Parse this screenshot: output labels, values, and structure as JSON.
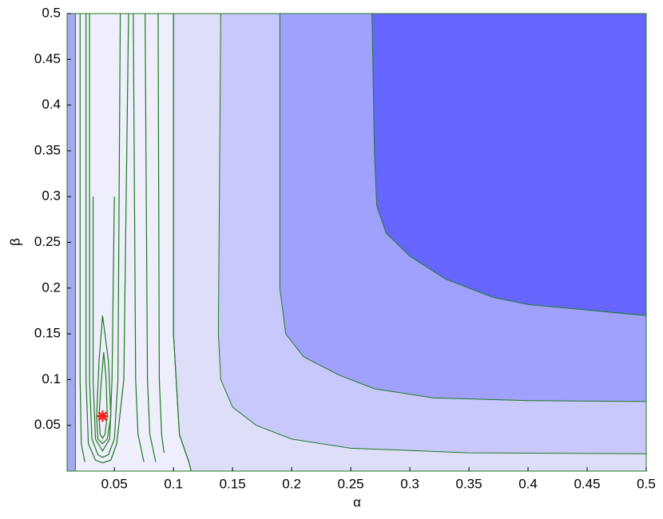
{
  "chart_data": {
    "type": "contour",
    "xlabel": "α",
    "ylabel": "β",
    "xlim": [
      0.01,
      0.5
    ],
    "ylim": [
      0,
      0.5
    ],
    "xticks": [
      0.05,
      0.1,
      0.15,
      0.2,
      0.25,
      0.3,
      0.35,
      0.4,
      0.45,
      0.5
    ],
    "yticks": [
      0.05,
      0.1,
      0.15,
      0.2,
      0.25,
      0.3,
      0.35,
      0.4,
      0.45,
      0.5
    ],
    "background": "#eeeefc",
    "line_color": "#1f7a1f",
    "regions": [
      {
        "color": "#a4aaf0",
        "x": [
          0.01,
          0.017,
          0.017,
          0.01
        ],
        "y": [
          0,
          0,
          0.5,
          0.5
        ]
      },
      {
        "color": "#dedef9",
        "x": [
          0.1,
          0.1,
          0.1,
          0.105,
          0.113,
          0.115,
          0.5,
          0.5
        ],
        "y": [
          0.5,
          0.3,
          0.15,
          0.04,
          0.01,
          0,
          0,
          0.5
        ]
      },
      {
        "color": "#c8c8fd",
        "x": [
          0.14,
          0.138,
          0.14,
          0.15,
          0.17,
          0.2,
          0.25,
          0.35,
          0.5,
          0.5
        ],
        "y": [
          0.5,
          0.15,
          0.1,
          0.07,
          0.05,
          0.035,
          0.025,
          0.02,
          0.019,
          0.5
        ]
      },
      {
        "color": "#a0a0fd",
        "x": [
          0.19,
          0.19,
          0.195,
          0.21,
          0.24,
          0.27,
          0.32,
          0.4,
          0.5,
          0.5
        ],
        "y": [
          0.5,
          0.2,
          0.15,
          0.125,
          0.105,
          0.09,
          0.08,
          0.077,
          0.076,
          0.5
        ]
      },
      {
        "color": "#6666fe",
        "x": [
          0.268,
          0.27,
          0.272,
          0.28,
          0.3,
          0.33,
          0.37,
          0.4,
          0.45,
          0.5,
          0.5
        ],
        "y": [
          0.5,
          0.35,
          0.29,
          0.26,
          0.235,
          0.21,
          0.19,
          0.182,
          0.176,
          0.17,
          0.5
        ]
      }
    ],
    "lines": [
      {
        "x": [
          0.021,
          0.021,
          0.022,
          0.025
        ],
        "y": [
          0.5,
          0.1,
          0.03,
          0.01
        ]
      },
      {
        "x": [
          0.026,
          0.026,
          0.028,
          0.034,
          0.04,
          0.047,
          0.052,
          0.058,
          0.06,
          0.062
        ],
        "y": [
          0.5,
          0.1,
          0.03,
          0.012,
          0.009,
          0.012,
          0.03,
          0.1,
          0.3,
          0.5
        ]
      },
      {
        "x": [
          0.029,
          0.029,
          0.031,
          0.036,
          0.04,
          0.045,
          0.05,
          0.053,
          0.054,
          0.055
        ],
        "y": [
          0.5,
          0.1,
          0.035,
          0.018,
          0.015,
          0.018,
          0.035,
          0.1,
          0.3,
          0.5
        ]
      },
      {
        "x": [
          0.032,
          0.032,
          0.034,
          0.04,
          0.046,
          0.048,
          0.049,
          0.05
        ],
        "y": [
          0.3,
          0.1,
          0.035,
          0.022,
          0.035,
          0.1,
          0.2,
          0.3
        ]
      },
      {
        "x": [
          0.035,
          0.037,
          0.04,
          0.045,
          0.047,
          0.044,
          0.04,
          0.036,
          0.035
        ],
        "y": [
          0.06,
          0.12,
          0.17,
          0.12,
          0.06,
          0.035,
          0.03,
          0.035,
          0.06
        ]
      },
      {
        "x": [
          0.037,
          0.039,
          0.041,
          0.043,
          0.044,
          0.042,
          0.04,
          0.038,
          0.037
        ],
        "y": [
          0.06,
          0.1,
          0.13,
          0.1,
          0.06,
          0.04,
          0.036,
          0.04,
          0.06
        ]
      },
      {
        "x": [
          0.066,
          0.068,
          0.07,
          0.075
        ],
        "y": [
          0.5,
          0.1,
          0.04,
          0.01
        ]
      },
      {
        "x": [
          0.076,
          0.078,
          0.08,
          0.085
        ],
        "y": [
          0.5,
          0.1,
          0.04,
          0.01
        ]
      },
      {
        "x": [
          0.087,
          0.088,
          0.09,
          0.092
        ],
        "y": [
          0.5,
          0.1,
          0.04,
          0.02
        ]
      },
      {
        "x": [
          0.1,
          0.1,
          0.1,
          0.105,
          0.113,
          0.115
        ],
        "y": [
          0.5,
          0.3,
          0.15,
          0.04,
          0.01,
          0
        ]
      }
    ],
    "marker": {
      "x": 0.04,
      "y": 0.06,
      "color": "#ff2020"
    }
  }
}
